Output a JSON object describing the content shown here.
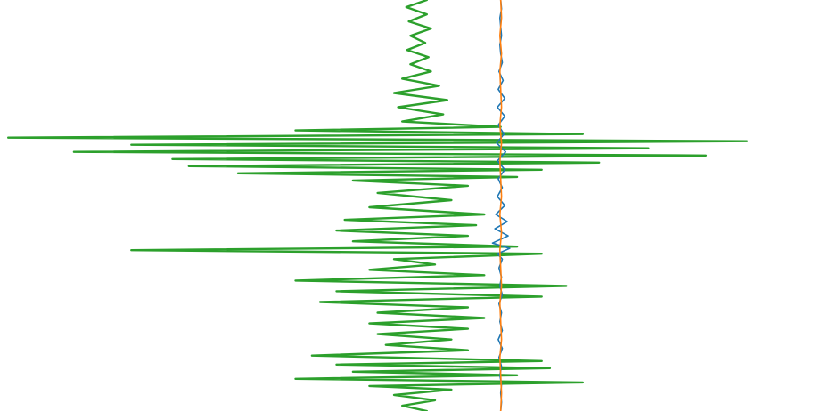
{
  "chart_data": {
    "type": "line",
    "orientation": "vertical",
    "title": "",
    "xlabel": "",
    "ylabel": "",
    "axes_visible": false,
    "grid": false,
    "legend": "none",
    "xlim": [
      -6.1,
      4.0
    ],
    "ylim": [
      0,
      460
    ],
    "series": [
      {
        "color": "#2ca02c",
        "offset": -1.0,
        "y": [
          0,
          8,
          16,
          24,
          32,
          40,
          48,
          56,
          64,
          72,
          80,
          88,
          96,
          104,
          112,
          120,
          128,
          136,
          142,
          146,
          150,
          154,
          158,
          162,
          166,
          170,
          174,
          178,
          182,
          186,
          190,
          194,
          198,
          202,
          208,
          216,
          224,
          232,
          240,
          246,
          252,
          258,
          264,
          270,
          276,
          280,
          284,
          290,
          296,
          302,
          308,
          314,
          320,
          326,
          332,
          338,
          344,
          350,
          356,
          362,
          368,
          374,
          380,
          386,
          392,
          398,
          404,
          408,
          412,
          416,
          420,
          424,
          428,
          432,
          436,
          442,
          448,
          454,
          460
        ],
        "x": [
          0.1,
          -0.15,
          0.1,
          -0.12,
          0.15,
          -0.1,
          0.08,
          -0.14,
          0.12,
          -0.1,
          0.15,
          -0.2,
          0.25,
          -0.3,
          0.35,
          -0.25,
          0.3,
          -0.2,
          1.0,
          -1.5,
          2.0,
          -5.0,
          4.0,
          -3.5,
          2.8,
          -4.2,
          3.5,
          -3.0,
          2.2,
          -2.8,
          1.5,
          -2.2,
          1.2,
          -0.8,
          0.6,
          -0.5,
          0.4,
          -0.6,
          0.8,
          -0.9,
          0.7,
          -1.0,
          0.6,
          -0.8,
          1.2,
          -3.5,
          1.5,
          -0.3,
          0.2,
          -0.6,
          0.8,
          -1.5,
          1.8,
          -1.0,
          1.5,
          -1.2,
          0.6,
          -0.5,
          0.8,
          -0.6,
          0.6,
          -0.5,
          0.4,
          -0.4,
          0.6,
          -1.3,
          1.5,
          -1.0,
          1.6,
          -0.8,
          1.2,
          -1.5,
          2.0,
          -0.6,
          0.4,
          -0.3,
          0.2,
          -0.2,
          0.1
        ]
      },
      {
        "color": "#1f77b4",
        "offset": 0.0,
        "y": [
          0,
          10,
          20,
          30,
          40,
          50,
          60,
          70,
          80,
          90,
          100,
          110,
          120,
          130,
          140,
          150,
          160,
          170,
          180,
          190,
          200,
          210,
          220,
          230,
          240,
          248,
          256,
          264,
          272,
          278,
          284,
          290,
          300,
          310,
          320,
          330,
          340,
          350,
          360,
          370,
          380,
          390,
          400,
          410,
          420,
          430,
          440,
          450,
          460
        ],
        "x": [
          0.0,
          0.01,
          -0.01,
          0.0,
          0.01,
          -0.01,
          0.0,
          0.02,
          -0.02,
          0.03,
          -0.03,
          0.05,
          -0.04,
          0.05,
          -0.03,
          0.04,
          -0.05,
          0.06,
          -0.04,
          0.05,
          -0.03,
          0.02,
          -0.04,
          0.05,
          -0.06,
          0.08,
          -0.07,
          0.09,
          -0.1,
          0.11,
          -0.04,
          0.02,
          -0.02,
          0.01,
          -0.01,
          0.02,
          -0.02,
          0.01,
          -0.01,
          0.02,
          -0.03,
          0.02,
          -0.02,
          0.01,
          -0.01,
          0.01,
          0.0,
          0.01,
          0.0
        ]
      },
      {
        "color": "#ff7f0e",
        "offset": 0.0,
        "y": [
          0,
          20,
          40,
          60,
          80,
          100,
          120,
          140,
          160,
          180,
          200,
          220,
          240,
          260,
          280,
          300,
          320,
          340,
          360,
          380,
          400,
          420,
          440,
          460
        ],
        "x": [
          0.0,
          0.01,
          -0.01,
          0.01,
          -0.01,
          0.0,
          0.01,
          -0.01,
          0.01,
          -0.01,
          0.0,
          0.01,
          -0.01,
          0.01,
          -0.01,
          0.0,
          0.01,
          -0.01,
          0.0,
          0.01,
          -0.01,
          0.0,
          0.01,
          0.0
        ]
      }
    ]
  }
}
